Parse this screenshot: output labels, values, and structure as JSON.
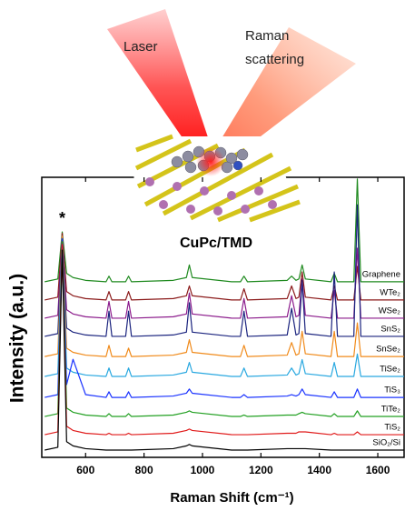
{
  "chart_data": {
    "type": "line",
    "x_label": "Raman Shift (cm⁻¹)",
    "y_label": "Intensity (a.u.)",
    "peak_marker": "*",
    "inset_label": "CuPc/TMD",
    "beam_labels": [
      "Laser",
      "Raman",
      "scattering"
    ],
    "xlim": [
      450,
      1690
    ],
    "xticks": [
      600,
      800,
      1000,
      1200,
      1400,
      1600
    ],
    "ylim": [
      0,
      100
    ],
    "x": [
      460,
      505,
      520,
      535,
      557,
      600,
      670,
      680,
      690,
      737,
      747,
      757,
      900,
      945,
      955,
      965,
      1100,
      1130,
      1142,
      1154,
      1290,
      1305,
      1320,
      1330,
      1341,
      1352,
      1440,
      1451,
      1462,
      1518,
      1530,
      1542,
      1690
    ],
    "series": [
      {
        "name": "Graphene",
        "color": "#1f8a1f",
        "values": [
          62.7,
          63.7,
          80.5,
          65.7,
          64.2,
          63.2,
          62.7,
          64.7,
          62.7,
          62.7,
          64.7,
          62.7,
          63.2,
          64.2,
          68.7,
          64.2,
          62.7,
          62.7,
          64.7,
          62.7,
          63.2,
          64.7,
          63.2,
          63.7,
          68.7,
          63.7,
          62.7,
          65.7,
          62.7,
          62.7,
          99.4,
          62.7,
          62.7
        ]
      },
      {
        "name": "WTe₂",
        "color": "#8b1a1a",
        "values": [
          56.2,
          57.2,
          80,
          59.2,
          57.7,
          56.7,
          56.2,
          59.2,
          56.2,
          56.2,
          59.2,
          56.2,
          56.7,
          57.7,
          61.2,
          57.7,
          56.2,
          56.2,
          60.2,
          56.2,
          56.7,
          61.2,
          56.7,
          57.2,
          66.2,
          57.2,
          56.2,
          61.2,
          56.2,
          56.2,
          68.2,
          56.2,
          56.2
        ]
      },
      {
        "name": "WSe₂",
        "color": "#8b1a8b",
        "values": [
          49.7,
          50.7,
          79,
          52.7,
          51.2,
          50.2,
          49.7,
          55.7,
          49.7,
          49.7,
          55.7,
          49.7,
          50.2,
          51.2,
          58.7,
          51.2,
          49.7,
          49.7,
          56.7,
          49.7,
          50.2,
          57.7,
          50.2,
          50.7,
          63.7,
          50.7,
          49.7,
          59.7,
          49.7,
          49.7,
          74.7,
          49.7,
          49.7
        ]
      },
      {
        "name": "SnS₂",
        "color": "#1a237e",
        "values": [
          43.2,
          44.2,
          79,
          46.2,
          44.7,
          43.7,
          43.2,
          52.2,
          43.2,
          43.2,
          52.2,
          43.2,
          43.7,
          44.7,
          55.2,
          44.7,
          43.2,
          43.2,
          52.2,
          43.2,
          43.7,
          53.2,
          43.7,
          44.2,
          63.2,
          44.2,
          43.2,
          66.2,
          43.2,
          43.2,
          90.2,
          43.2,
          43.2
        ]
      },
      {
        "name": "SnSe₂",
        "color": "#f08a1a",
        "values": [
          36,
          37,
          79,
          39,
          37.5,
          36.5,
          36,
          40,
          36,
          36,
          39,
          36,
          36.5,
          37.5,
          42,
          37.5,
          36,
          36,
          40,
          36,
          36.5,
          41,
          36.5,
          37,
          45,
          37,
          36,
          45,
          36,
          36,
          48,
          36,
          36
        ]
      },
      {
        "name": "TiSe₂",
        "color": "#29a8e0",
        "values": [
          28.9,
          29.9,
          78,
          31.9,
          30.4,
          29.4,
          28.9,
          31.9,
          28.9,
          28.9,
          31.9,
          28.9,
          29.4,
          30.4,
          33.9,
          30.4,
          28.9,
          28.9,
          31.9,
          28.9,
          29.4,
          31.9,
          29.4,
          29.9,
          34.9,
          29.9,
          28.9,
          33.9,
          28.9,
          28.9,
          36.9,
          28.9,
          28.9
        ]
      },
      {
        "name": "TiS₃",
        "color": "#1a33ff",
        "values": [
          21.4,
          22.4,
          78,
          26,
          35,
          22.4,
          21.4,
          23.4,
          21.4,
          21.4,
          23.4,
          21.4,
          21.9,
          22.9,
          24.4,
          22.9,
          21.4,
          21.4,
          22.4,
          21.4,
          21.9,
          22.4,
          21.9,
          22.4,
          24.4,
          22.4,
          21.4,
          23.4,
          21.4,
          21.4,
          24.4,
          21.4,
          21.4
        ]
      },
      {
        "name": "TiTe₂",
        "color": "#22a022",
        "values": [
          14.6,
          15.6,
          77,
          17.6,
          16.1,
          15.1,
          14.6,
          15.6,
          14.6,
          14.6,
          15.6,
          14.6,
          15.1,
          16.1,
          16.6,
          16.1,
          14.6,
          14.6,
          15.1,
          14.6,
          15.1,
          15.1,
          15.1,
          15.6,
          16.1,
          15.6,
          14.6,
          15.6,
          14.6,
          14.6,
          16.6,
          14.6,
          14.6
        ]
      },
      {
        "name": "TiS₂",
        "color": "#e01a1a",
        "values": [
          8.1,
          9.1,
          76,
          11.1,
          9.6,
          8.6,
          8.1,
          8.6,
          8.1,
          8.1,
          8.6,
          8.1,
          8.6,
          9.6,
          10.1,
          9.6,
          8.1,
          8.1,
          8.1,
          8.1,
          8.6,
          8.6,
          8.6,
          9.1,
          9.1,
          9.1,
          8.1,
          8.6,
          8.1,
          8.1,
          9.1,
          8.1,
          8.1
        ]
      },
      {
        "name": "SiO₂/Si",
        "color": "#000000",
        "values": [
          2.6,
          3.6,
          74,
          5.6,
          4.1,
          3.1,
          2.6,
          2.6,
          2.6,
          2.6,
          2.6,
          2.6,
          3.1,
          4.1,
          4.6,
          4.1,
          2.6,
          2.6,
          2.6,
          2.6,
          3.1,
          3.1,
          3.1,
          3.1,
          3.1,
          3.1,
          2.6,
          2.6,
          2.6,
          2.6,
          2.6,
          2.6,
          2.6
        ]
      }
    ]
  }
}
